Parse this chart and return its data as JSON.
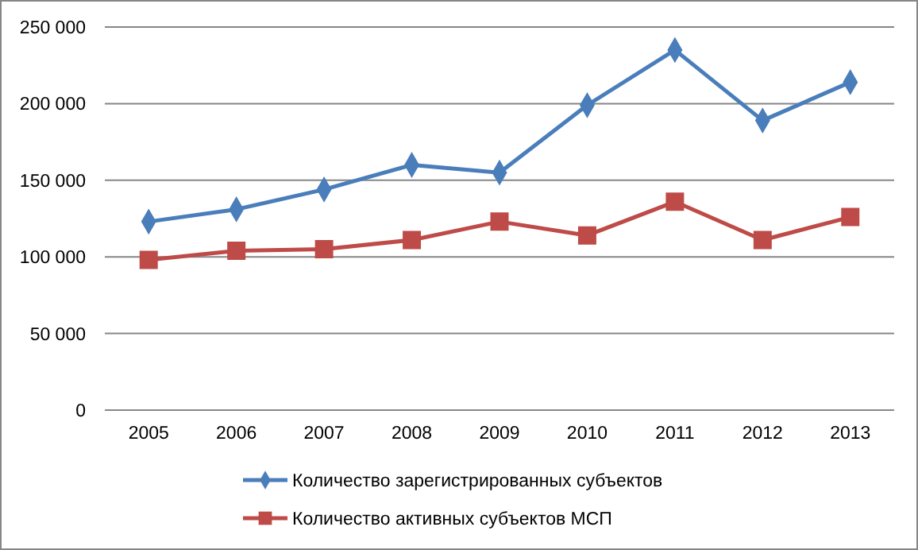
{
  "chart_data": {
    "type": "line",
    "categories": [
      "2005",
      "2006",
      "2007",
      "2008",
      "2009",
      "2010",
      "2011",
      "2012",
      "2013"
    ],
    "series": [
      {
        "name": "Количество зарегистрированных субъектов",
        "color": "#4a7ebb",
        "marker": "diamond",
        "values": [
          123000,
          131000,
          144000,
          160000,
          155000,
          199000,
          235000,
          189000,
          214000
        ]
      },
      {
        "name": "Количество активных субъектов МСП",
        "color": "#be4b48",
        "marker": "square",
        "values": [
          98000,
          104000,
          105000,
          111000,
          123000,
          114000,
          136000,
          111000,
          126000
        ]
      }
    ],
    "ylim": [
      0,
      250000
    ],
    "yticks": [
      0,
      {
        "value": 50000,
        "label": "50 000"
      },
      {
        "value": 100000,
        "label": "100 000"
      },
      {
        "value": 150000,
        "label": "150 000"
      },
      {
        "value": 200000,
        "label": "200 000"
      },
      {
        "value": 250000,
        "label": "250 000"
      }
    ],
    "grid": "y",
    "legend": "bottom"
  }
}
